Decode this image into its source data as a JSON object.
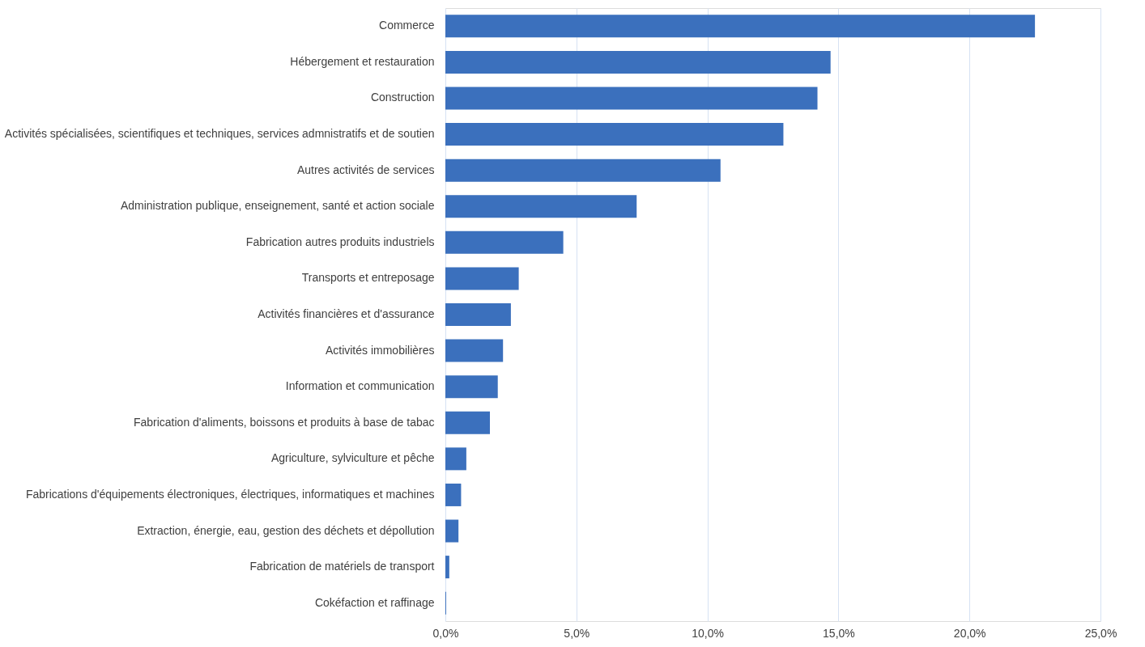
{
  "chart_data": {
    "type": "bar",
    "orientation": "horizontal",
    "categories": [
      "Commerce",
      "Hébergement et restauration",
      "Construction",
      "Activités spécialisées, scientifiques et techniques, services admnistratifs et de soutien",
      "Autres activités de services",
      "Administration publique, enseignement, santé et action sociale",
      "Fabrication autres produits industriels",
      "Transports et entreposage",
      "Activités financières et d'assurance",
      "Activités immobilières",
      "Information et communication",
      "Fabrication d'aliments, boissons et produits à base de tabac",
      "Agriculture, sylviculture et pêche",
      "Fabrications d'équipements électroniques, électriques, informatiques et machines",
      "Extraction, énergie, eau, gestion des déchets et dépollution",
      "Fabrication de matériels de transport",
      "Cokéfaction et raffinage"
    ],
    "values": [
      22.5,
      14.7,
      14.2,
      12.9,
      10.5,
      7.3,
      4.5,
      2.8,
      2.5,
      2.2,
      2.0,
      1.7,
      0.8,
      0.6,
      0.5,
      0.15,
      0.03
    ],
    "color": "#3b70bd",
    "xlim": [
      0,
      25
    ],
    "xticks": [
      {
        "value": 0,
        "label": "0,0%"
      },
      {
        "value": 5,
        "label": "5,0%"
      },
      {
        "value": 10,
        "label": "10,0%"
      },
      {
        "value": 15,
        "label": "15,0%"
      },
      {
        "value": 20,
        "label": "20,0%"
      },
      {
        "value": 25,
        "label": "25,0%"
      }
    ],
    "grid": "x"
  }
}
